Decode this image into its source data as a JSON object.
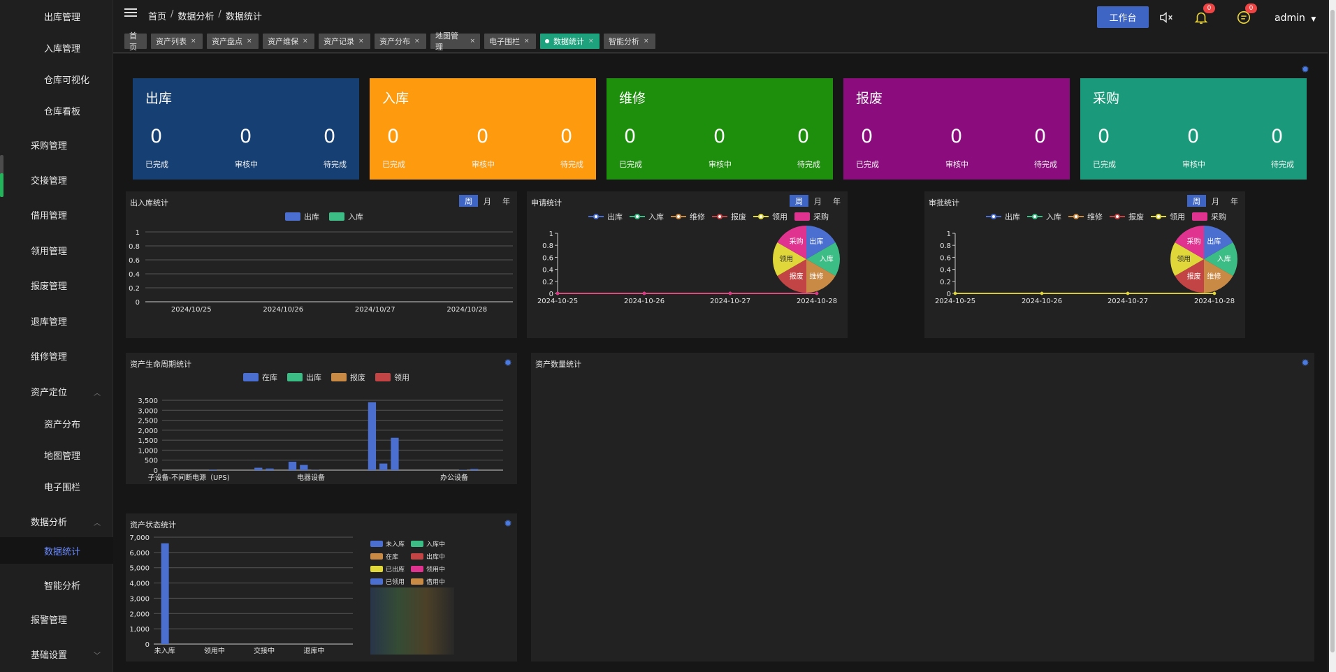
{
  "sidebar": {
    "items": [
      {
        "label": "出库管理",
        "level": 2,
        "name": "sidebar-item-outbound"
      },
      {
        "label": "入库管理",
        "level": 2,
        "name": "sidebar-item-inbound"
      },
      {
        "label": "仓库可视化",
        "level": 2,
        "name": "sidebar-item-warehouse-visual"
      },
      {
        "label": "仓库看板",
        "level": 2,
        "name": "sidebar-item-warehouse-board"
      },
      {
        "label": "采购管理",
        "level": 1,
        "name": "sidebar-item-purchase"
      },
      {
        "label": "交接管理",
        "level": 1,
        "name": "sidebar-item-handover"
      },
      {
        "label": "借用管理",
        "level": 1,
        "name": "sidebar-item-borrow"
      },
      {
        "label": "领用管理",
        "level": 1,
        "name": "sidebar-item-receive"
      },
      {
        "label": "报废管理",
        "level": 1,
        "name": "sidebar-item-scrap"
      },
      {
        "label": "退库管理",
        "level": 1,
        "name": "sidebar-item-return"
      },
      {
        "label": "维修管理",
        "level": 1,
        "name": "sidebar-item-repair"
      },
      {
        "label": "资产定位",
        "level": 1,
        "name": "sidebar-item-asset-location",
        "chevron": "up"
      },
      {
        "label": "资产分布",
        "level": 2,
        "name": "sidebar-item-asset-distribution"
      },
      {
        "label": "地图管理",
        "level": 2,
        "name": "sidebar-item-map"
      },
      {
        "label": "电子围栏",
        "level": 2,
        "name": "sidebar-item-fence"
      },
      {
        "label": "数据分析",
        "level": 1,
        "name": "sidebar-item-data-analysis",
        "chevron": "up"
      },
      {
        "label": "数据统计",
        "level": 2,
        "name": "sidebar-item-data-stats",
        "active": true
      },
      {
        "label": "智能分析",
        "level": 2,
        "name": "sidebar-item-smart-analysis"
      },
      {
        "label": "报警管理",
        "level": 1,
        "name": "sidebar-item-alarm"
      },
      {
        "label": "基础设置",
        "level": 1,
        "name": "sidebar-item-settings",
        "chevron": "down"
      }
    ]
  },
  "header": {
    "breadcrumb": [
      "首页",
      "数据分析",
      "数据统计"
    ],
    "workbench_label": "工作台",
    "bell_badge": "0",
    "msg_badge": "0",
    "user": "admin"
  },
  "tabs": [
    {
      "label": "首页",
      "closable": false
    },
    {
      "label": "资产列表",
      "closable": true
    },
    {
      "label": "资产盘点",
      "closable": true
    },
    {
      "label": "资产维保",
      "closable": true
    },
    {
      "label": "资产记录",
      "closable": true
    },
    {
      "label": "资产分布",
      "closable": true
    },
    {
      "label": "地图管理",
      "closable": true
    },
    {
      "label": "电子围栏",
      "closable": true
    },
    {
      "label": "数据统计",
      "closable": true,
      "active": true
    },
    {
      "label": "智能分析",
      "closable": true
    }
  ],
  "cards": [
    {
      "title": "出库",
      "color": "#163f73",
      "values": [
        "0",
        "0",
        "0"
      ],
      "labels": [
        "已完成",
        "审核中",
        "待完成"
      ]
    },
    {
      "title": "入库",
      "color": "#fd9a0d",
      "values": [
        "0",
        "0",
        "0"
      ],
      "labels": [
        "已完成",
        "审核中",
        "待完成"
      ]
    },
    {
      "title": "维修",
      "color": "#1e8f0c",
      "values": [
        "0",
        "0",
        "0"
      ],
      "labels": [
        "已完成",
        "审核中",
        "待完成"
      ]
    },
    {
      "title": "报废",
      "color": "#8a0c7d",
      "values": [
        "0",
        "0",
        "0"
      ],
      "labels": [
        "已完成",
        "审核中",
        "待完成"
      ]
    },
    {
      "title": "采购",
      "color": "#1a9a7a",
      "values": [
        "0",
        "0",
        "0"
      ],
      "labels": [
        "已完成",
        "审核中",
        "待完成"
      ]
    }
  ],
  "panels": {
    "inout": {
      "title": "出入库统计",
      "switch": [
        "周",
        "月",
        "年"
      ]
    },
    "apply": {
      "title": "申请统计",
      "switch": [
        "周",
        "月",
        "年"
      ]
    },
    "approve": {
      "title": "审批统计",
      "switch": [
        "周",
        "月",
        "年"
      ]
    },
    "lifecycle": {
      "title": "资产生命周期统计"
    },
    "quantity": {
      "title": "资产数量统计"
    },
    "status": {
      "title": "资产状态统计"
    }
  },
  "colors": {
    "blue": "#4a6fd1",
    "green": "#3dbd86",
    "orange": "#c98a45",
    "red": "#c24444",
    "yellow": "#e0d83a",
    "pink": "#e0338f"
  },
  "chart_data": [
    {
      "id": "inout",
      "type": "bar",
      "categories": [
        "2024/10/25",
        "2024/10/26",
        "2024/10/27",
        "2024/10/28"
      ],
      "series": [
        {
          "name": "出库",
          "values": [
            0,
            0,
            0,
            0
          ]
        },
        {
          "name": "入库",
          "values": [
            0,
            0,
            0,
            0
          ]
        }
      ],
      "yticks": [
        "0",
        "0.2",
        "0.4",
        "0.6",
        "0.8",
        "1"
      ],
      "ylim": [
        0,
        1
      ]
    },
    {
      "id": "apply",
      "type": "line",
      "categories": [
        "2024-10-25",
        "2024-10-26",
        "2024-10-27",
        "2024-10-28"
      ],
      "series": [
        {
          "name": "出库",
          "values": [
            0,
            0,
            0,
            0
          ]
        },
        {
          "name": "入库",
          "values": [
            0,
            0,
            0,
            0
          ]
        },
        {
          "name": "维修",
          "values": [
            0,
            0,
            0,
            0
          ]
        },
        {
          "name": "报废",
          "values": [
            0,
            0,
            0,
            0
          ]
        },
        {
          "name": "领用",
          "values": [
            0,
            0,
            0,
            0
          ]
        },
        {
          "name": "采购",
          "values": [
            0,
            0,
            0,
            0
          ]
        }
      ],
      "yticks": [
        "0",
        "0.2",
        "0.4",
        "0.6",
        "0.8",
        "1"
      ],
      "ylim": [
        0,
        1
      ],
      "pie": [
        "出库",
        "入库",
        "维修",
        "报废",
        "领用",
        "采购"
      ]
    },
    {
      "id": "approve",
      "type": "line",
      "categories": [
        "2024-10-25",
        "2024-10-26",
        "2024-10-27",
        "2024-10-28"
      ],
      "series": [
        {
          "name": "出库",
          "values": [
            0,
            0,
            0,
            0
          ]
        },
        {
          "name": "入库",
          "values": [
            0,
            0,
            0,
            0
          ]
        },
        {
          "name": "维修",
          "values": [
            0,
            0,
            0,
            0
          ]
        },
        {
          "name": "报废",
          "values": [
            0,
            0,
            0,
            0
          ]
        },
        {
          "name": "领用",
          "values": [
            0,
            0,
            0,
            0
          ]
        },
        {
          "name": "采购",
          "values": [
            0,
            0,
            0,
            0
          ]
        }
      ],
      "yticks": [
        "0",
        "0.2",
        "0.4",
        "0.6",
        "0.8",
        "1"
      ],
      "ylim": [
        0,
        1
      ],
      "pie": [
        "出库",
        "入库",
        "维修",
        "报废",
        "领用",
        "采购"
      ]
    },
    {
      "id": "lifecycle",
      "type": "bar",
      "xlabels": [
        "子设备-不间断电源（UPS)",
        "电器设备",
        "办公设备"
      ],
      "series": [
        {
          "name": "在库"
        },
        {
          "name": "出库"
        },
        {
          "name": "报废"
        },
        {
          "name": "领用"
        }
      ],
      "values": [
        0,
        0,
        0,
        0,
        30,
        0,
        0,
        0,
        120,
        80,
        0,
        420,
        260,
        10,
        0,
        0,
        0,
        0,
        3400,
        330,
        1620,
        0,
        0,
        0,
        0,
        0,
        20,
        60,
        0,
        0
      ],
      "yticks": [
        "0",
        "500",
        "1,000",
        "1,500",
        "2,000",
        "2,500",
        "3,000",
        "3,500"
      ],
      "ylim": [
        0,
        3500
      ]
    },
    {
      "id": "status",
      "type": "bar",
      "categories": [
        "未入库",
        "领用中",
        "交接中",
        "退库中"
      ],
      "values": [
        6600,
        0,
        0,
        0
      ],
      "yticks": [
        "0",
        "1,000",
        "2,000",
        "3,000",
        "4,000",
        "5,000",
        "6,000",
        "7,000"
      ],
      "ylim": [
        0,
        7000
      ],
      "legend": [
        "未入库",
        "入库中",
        "在库",
        "出库中",
        "已出库",
        "领用中",
        "已领用",
        "借用中"
      ]
    }
  ]
}
